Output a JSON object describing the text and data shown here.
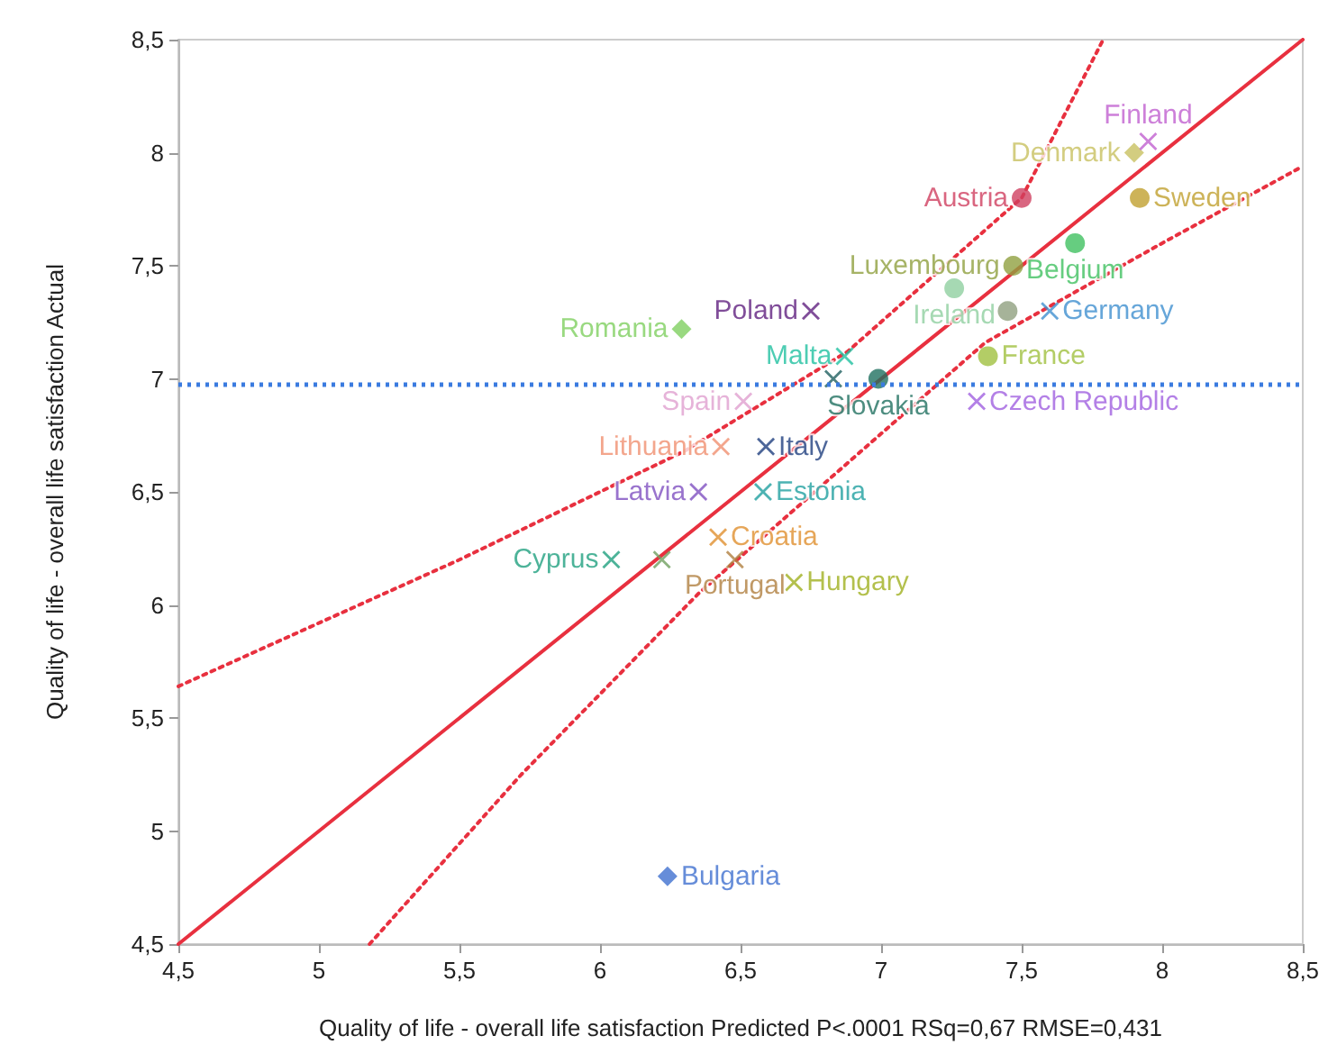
{
  "chart_data": {
    "type": "scatter",
    "xlabel": "Quality of life - overall life satisfaction Predicted P<.0001 RSq=0,67 RMSE=0,431",
    "ylabel": "Quality of life - overall life satisfaction Actual",
    "xlim": [
      4.5,
      8.5
    ],
    "ylim": [
      4.5,
      8.5
    ],
    "xticks": [
      {
        "value": 4.5,
        "label": "4,5"
      },
      5,
      {
        "value": 5.5,
        "label": "5,5"
      },
      6,
      {
        "value": 6.5,
        "label": "6,5"
      },
      7,
      {
        "value": 7.5,
        "label": "7,5"
      },
      8,
      {
        "value": 8.5,
        "label": "8,5"
      }
    ],
    "yticks": [
      {
        "value": 4.5,
        "label": "4,5"
      },
      5,
      {
        "value": 5.5,
        "label": "5,5"
      },
      6,
      {
        "value": 6.5,
        "label": "6,5"
      },
      7,
      {
        "value": 7.5,
        "label": "7,5"
      },
      8,
      {
        "value": 8.5,
        "label": "8,5"
      }
    ],
    "grid": false,
    "legend": false,
    "ref_lines": [
      {
        "axis": "y",
        "value": 6.98,
        "color": "#3a7be0",
        "line_style": "dotted"
      }
    ],
    "series": [
      {
        "type": "line",
        "color": "#e8303f",
        "line_style": "solid",
        "marker": "none",
        "x": [
          4.5,
          8.5
        ],
        "values": [
          4.5,
          8.5
        ]
      },
      {
        "type": "line",
        "color": "#e8303f",
        "line_style": "dotted",
        "marker": "none",
        "x": [
          4.5,
          5.5,
          6.3,
          6.88,
          7.5,
          7.79
        ],
        "values": [
          5.64,
          6.2,
          6.68,
          7.12,
          7.8,
          8.5
        ]
      },
      {
        "type": "line",
        "color": "#e8303f",
        "line_style": "dotted",
        "marker": "none",
        "x": [
          5.18,
          5.72,
          6.35,
          7.37,
          8.0,
          8.5
        ],
        "values": [
          4.5,
          5.25,
          6.05,
          7.16,
          7.6,
          7.94
        ]
      },
      {
        "name": "Denmark",
        "color": "#c8c060",
        "marker": "diamond",
        "x": [
          7.9
        ],
        "values": [
          8.0
        ]
      },
      {
        "name": "Finland",
        "color": "#c060d0",
        "marker": "cross",
        "x": [
          7.95
        ],
        "values": [
          8.05
        ]
      },
      {
        "name": "Austria",
        "color": "#d04060",
        "marker": "circle",
        "x": [
          7.5
        ],
        "values": [
          7.8
        ]
      },
      {
        "name": "Sweden",
        "color": "#c0a030",
        "marker": "circle",
        "x": [
          7.92
        ],
        "values": [
          7.8
        ]
      },
      {
        "name": "Belgium",
        "color": "#40c060",
        "marker": "circle",
        "x": [
          7.69
        ],
        "values": [
          7.6
        ]
      },
      {
        "name": "Luxembourg",
        "color": "#90a040",
        "marker": "circle",
        "x": [
          7.47
        ],
        "values": [
          7.5
        ]
      },
      {
        "name": "Ireland",
        "color": "#90d0a0",
        "marker": "circle",
        "x": [
          7.26
        ],
        "values": [
          7.4
        ]
      },
      {
        "color": "#90a080",
        "marker": "circle",
        "x": [
          7.45
        ],
        "values": [
          7.3
        ]
      },
      {
        "name": "Germany",
        "color": "#4090d0",
        "marker": "cross",
        "x": [
          7.6
        ],
        "values": [
          7.3
        ]
      },
      {
        "name": "Poland",
        "color": "#602080",
        "marker": "cross",
        "x": [
          6.75
        ],
        "values": [
          7.3
        ]
      },
      {
        "name": "Romania",
        "color": "#80d060",
        "marker": "diamond",
        "x": [
          6.29
        ],
        "values": [
          7.22
        ]
      },
      {
        "name": "Malta",
        "color": "#20c0a0",
        "marker": "cross",
        "x": [
          6.87
        ],
        "values": [
          7.1
        ]
      },
      {
        "name": "France",
        "color": "#a0c040",
        "marker": "circle",
        "x": [
          7.38
        ],
        "values": [
          7.1
        ]
      },
      {
        "color": "#206060",
        "marker": "cross",
        "x": [
          6.83
        ],
        "values": [
          7.0
        ]
      },
      {
        "name": "Slovakia",
        "color": "#207060",
        "marker": "circle",
        "x": [
          6.99
        ],
        "values": [
          7.0
        ]
      },
      {
        "name": "Spain",
        "color": "#e0a0d0",
        "marker": "cross",
        "x": [
          6.51
        ],
        "values": [
          6.9
        ]
      },
      {
        "name": "Czech Republic",
        "color": "#a060e0",
        "marker": "cross",
        "x": [
          7.34
        ],
        "values": [
          6.9
        ]
      },
      {
        "name": "Lithuania",
        "color": "#f09070",
        "marker": "cross",
        "x": [
          6.43
        ],
        "values": [
          6.7
        ]
      },
      {
        "name": "Italy",
        "color": "#204080",
        "marker": "cross",
        "x": [
          6.59
        ],
        "values": [
          6.7
        ]
      },
      {
        "name": "Latvia",
        "color": "#8050c0",
        "marker": "cross",
        "x": [
          6.35
        ],
        "values": [
          6.5
        ]
      },
      {
        "name": "Estonia",
        "color": "#20a0a0",
        "marker": "cross",
        "x": [
          6.58
        ],
        "values": [
          6.5
        ]
      },
      {
        "name": "Croatia",
        "color": "#e09030",
        "marker": "cross",
        "x": [
          6.42
        ],
        "values": [
          6.3
        ]
      },
      {
        "name": "Portugal",
        "color": "#b08040",
        "marker": "cross",
        "x": [
          6.48
        ],
        "values": [
          6.2
        ]
      },
      {
        "name": "Cyprus",
        "color": "#20a080",
        "marker": "cross",
        "x": [
          6.04
        ],
        "values": [
          6.2
        ]
      },
      {
        "color": "#70a060",
        "marker": "cross",
        "x": [
          6.22
        ],
        "values": [
          6.2
        ]
      },
      {
        "name": "Hungary",
        "color": "#a0b020",
        "marker": "cross",
        "x": [
          6.69
        ],
        "values": [
          6.1
        ]
      },
      {
        "name": "Bulgaria",
        "color": "#4070d0",
        "marker": "diamond",
        "x": [
          6.24
        ],
        "values": [
          4.8
        ]
      }
    ]
  }
}
